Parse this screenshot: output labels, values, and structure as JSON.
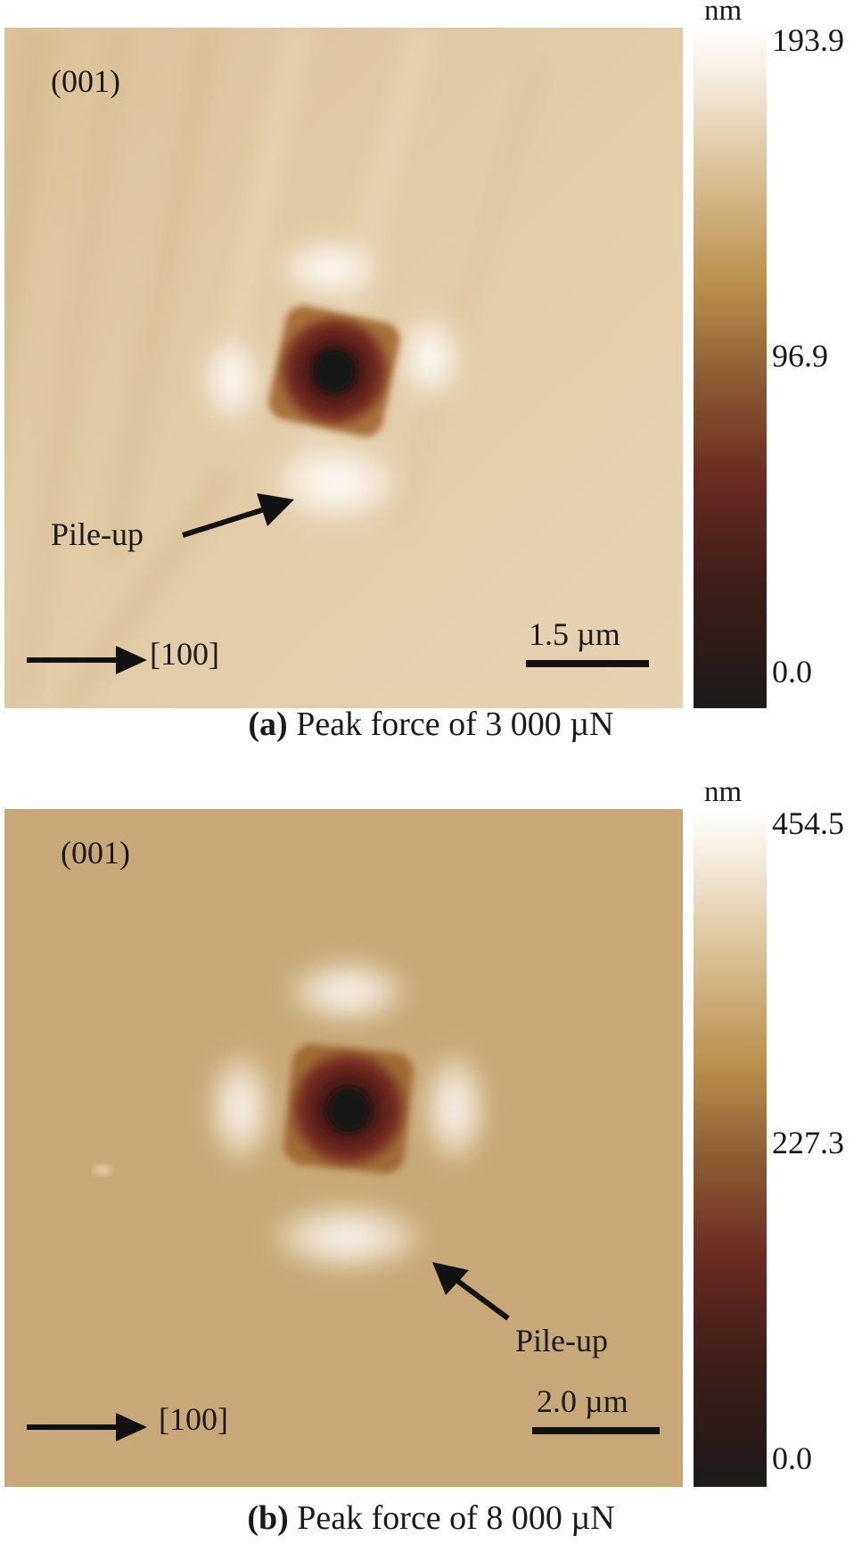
{
  "panels": [
    {
      "id": "a",
      "plane": "(001)",
      "direction": "[100]",
      "pileup_label": "Pile-up",
      "scalebar": "1.5 µm",
      "colorbar": {
        "unit": "nm",
        "max": "193.9",
        "mid": "96.9",
        "min": "0.0"
      },
      "caption_letter": "(a)",
      "caption_text": " Peak force of 3 000 µN",
      "background_color": "#e0c9a4"
    },
    {
      "id": "b",
      "plane": "(001)",
      "direction": "[100]",
      "pileup_label": "Pile-up",
      "scalebar": "2.0 µm",
      "colorbar": {
        "unit": "nm",
        "max": "454.5",
        "mid": "227.3",
        "min": "0.0"
      },
      "caption_letter": "(b)",
      "caption_text": " Peak force of 8 000 µN",
      "background_color": "#c8a878"
    }
  ],
  "colors": {
    "indent_center": "#141414",
    "indent_edge": "#8a3a22",
    "pileup": "#fffdf8",
    "colorbar_top": "#ffffff",
    "colorbar_bottom": "#1c1c1c"
  }
}
